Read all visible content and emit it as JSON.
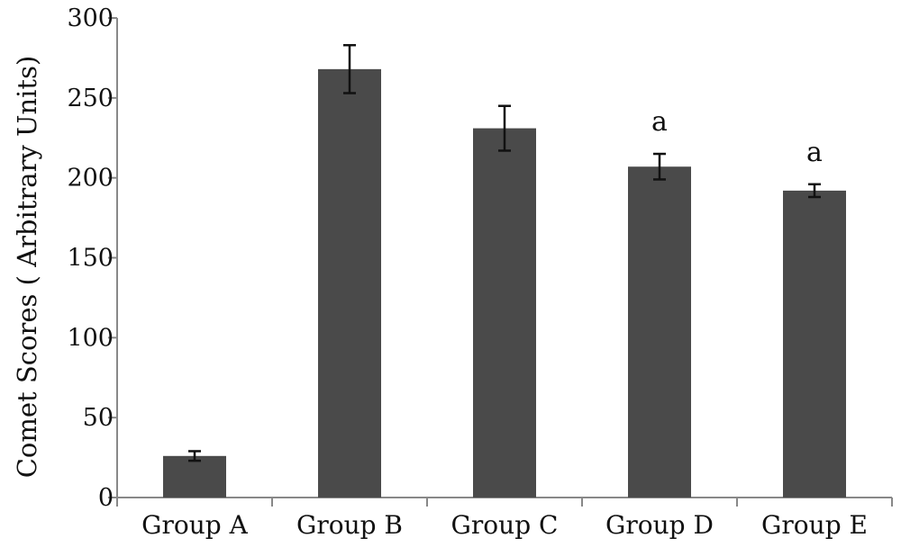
{
  "chart_data": {
    "type": "bar",
    "title": "",
    "xlabel": "",
    "ylabel": "Comet Scores ( Arbitrary Units)",
    "ylim": [
      0,
      300
    ],
    "yticks": [
      0,
      50,
      100,
      150,
      200,
      250,
      300
    ],
    "grid": false,
    "legend": "none",
    "categories": [
      "Group A",
      "Group B",
      "Group C",
      "Group D",
      "Group E"
    ],
    "values": [
      26,
      268,
      231,
      207,
      192
    ],
    "error": [
      3,
      15,
      14,
      8,
      4
    ],
    "annotations": [
      "",
      "",
      "",
      "a",
      "a"
    ],
    "bar_color": "#4a4a4a",
    "axis_color": "#888888"
  }
}
